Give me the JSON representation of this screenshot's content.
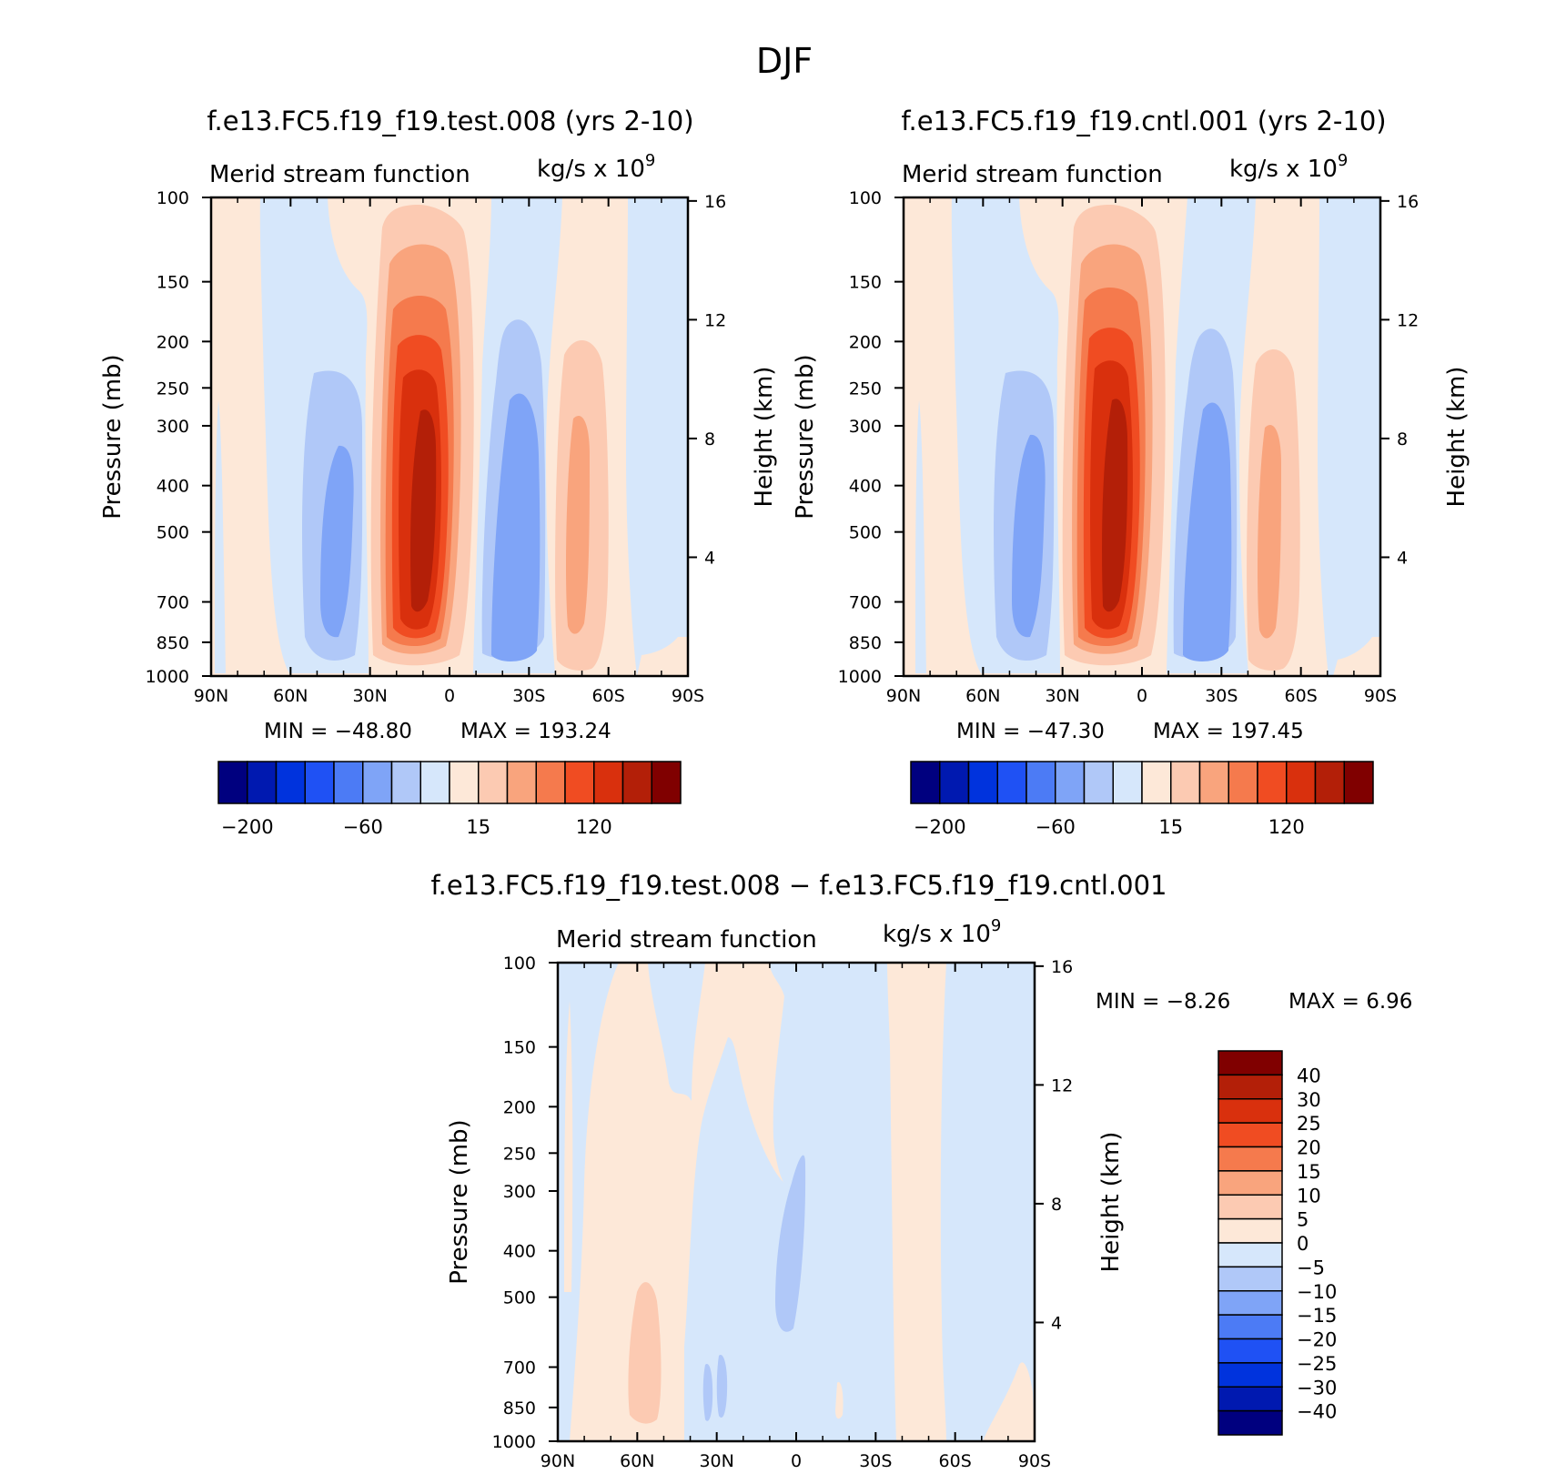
{
  "figure": {
    "title": "DJF",
    "meta": "Meridional stream function, DJF"
  },
  "palette": {
    "diverging16": [
      "#00007f",
      "#0019b0",
      "#0033dd",
      "#1f51f4",
      "#4c7bf5",
      "#7fa4f7",
      "#b0c8f8",
      "#d6e7fb",
      "#fde8d8",
      "#fccab2",
      "#f9a47d",
      "#f57a4d",
      "#f04c22",
      "#d9300d",
      "#b31f08",
      "#800000"
    ],
    "diff16": [
      "#00007f",
      "#0019b0",
      "#0033dd",
      "#1f51f4",
      "#4c7bf5",
      "#7fa4f7",
      "#b0c8f8",
      "#d6e7fb",
      "#fde8d8",
      "#fccab2",
      "#f9a47d",
      "#f57a4d",
      "#f04c22",
      "#d9300d",
      "#b31f08",
      "#800000"
    ]
  },
  "chart_data": [
    {
      "type": "heatmap",
      "title": "f.e13.FC5.f19_f19.test.008 (yrs 2-10)",
      "subtitle": "Merid stream function",
      "units_base": "kg/s x 10",
      "units_exp": "9",
      "xlabel": "",
      "ylabel": "Pressure (mb)",
      "y2label": "Height (km)",
      "x_ticks": [
        "90N",
        "60N",
        "30N",
        "0",
        "30S",
        "60S",
        "90S"
      ],
      "x_tick_values": [
        90,
        60,
        30,
        0,
        -30,
        -60,
        -90
      ],
      "y_ticks": [
        "100",
        "150",
        "200",
        "250",
        "300",
        "400",
        "500",
        "700",
        "850",
        "1000"
      ],
      "y_tick_values": [
        100,
        150,
        200,
        250,
        300,
        400,
        500,
        700,
        850,
        1000
      ],
      "y2_ticks": [
        "16",
        "12",
        "8",
        "4"
      ],
      "y2_tick_values": [
        16,
        12,
        8,
        4
      ],
      "ylog": true,
      "min_label": "MIN  =  −48.80",
      "max_label": "MAX  =  193.24",
      "min": -48.8,
      "max": 193.24,
      "colorbar_labels": [
        "−200",
        "−60",
        "15",
        "120"
      ],
      "colorbar_label_positions": [
        1,
        5,
        9,
        13
      ]
    },
    {
      "type": "heatmap",
      "title": "f.e13.FC5.f19_f19.cntl.001 (yrs 2-10)",
      "subtitle": "Merid stream function",
      "units_base": "kg/s x 10",
      "units_exp": "9",
      "xlabel": "",
      "ylabel": "Pressure (mb)",
      "y2label": "Height (km)",
      "x_ticks": [
        "90N",
        "60N",
        "30N",
        "0",
        "30S",
        "60S",
        "90S"
      ],
      "x_tick_values": [
        90,
        60,
        30,
        0,
        -30,
        -60,
        -90
      ],
      "y_ticks": [
        "100",
        "150",
        "200",
        "250",
        "300",
        "400",
        "500",
        "700",
        "850",
        "1000"
      ],
      "y_tick_values": [
        100,
        150,
        200,
        250,
        300,
        400,
        500,
        700,
        850,
        1000
      ],
      "y2_ticks": [
        "16",
        "12",
        "8",
        "4"
      ],
      "y2_tick_values": [
        16,
        12,
        8,
        4
      ],
      "ylog": true,
      "min_label": "MIN  =  −47.30",
      "max_label": "MAX  =  197.45",
      "min": -47.3,
      "max": 197.45,
      "colorbar_labels": [
        "−200",
        "−60",
        "15",
        "120"
      ],
      "colorbar_label_positions": [
        1,
        5,
        9,
        13
      ]
    },
    {
      "type": "heatmap",
      "title": "f.e13.FC5.f19_f19.test.008 − f.e13.FC5.f19_f19.cntl.001",
      "subtitle": "Merid stream function",
      "units_base": "kg/s x 10",
      "units_exp": "9",
      "xlabel": "",
      "ylabel": "Pressure (mb)",
      "y2label": "Height (km)",
      "x_ticks": [
        "90N",
        "60N",
        "30N",
        "0",
        "30S",
        "60S",
        "90S"
      ],
      "x_tick_values": [
        90,
        60,
        30,
        0,
        -30,
        -60,
        -90
      ],
      "y_ticks": [
        "100",
        "150",
        "200",
        "250",
        "300",
        "400",
        "500",
        "700",
        "850",
        "1000"
      ],
      "y_tick_values": [
        100,
        150,
        200,
        250,
        300,
        400,
        500,
        700,
        850,
        1000
      ],
      "y2_ticks": [
        "16",
        "12",
        "8",
        "4"
      ],
      "y2_tick_values": [
        16,
        12,
        8,
        4
      ],
      "ylog": true,
      "min_label": "MIN  =    −8.26",
      "max_label": "MAX  =     6.96",
      "min": -8.26,
      "max": 6.96,
      "colorbar_labels": [
        "40",
        "30",
        "25",
        "20",
        "15",
        "10",
        "5",
        "0",
        "−5",
        "−10",
        "−15",
        "−20",
        "−25",
        "−30",
        "−40"
      ]
    }
  ]
}
